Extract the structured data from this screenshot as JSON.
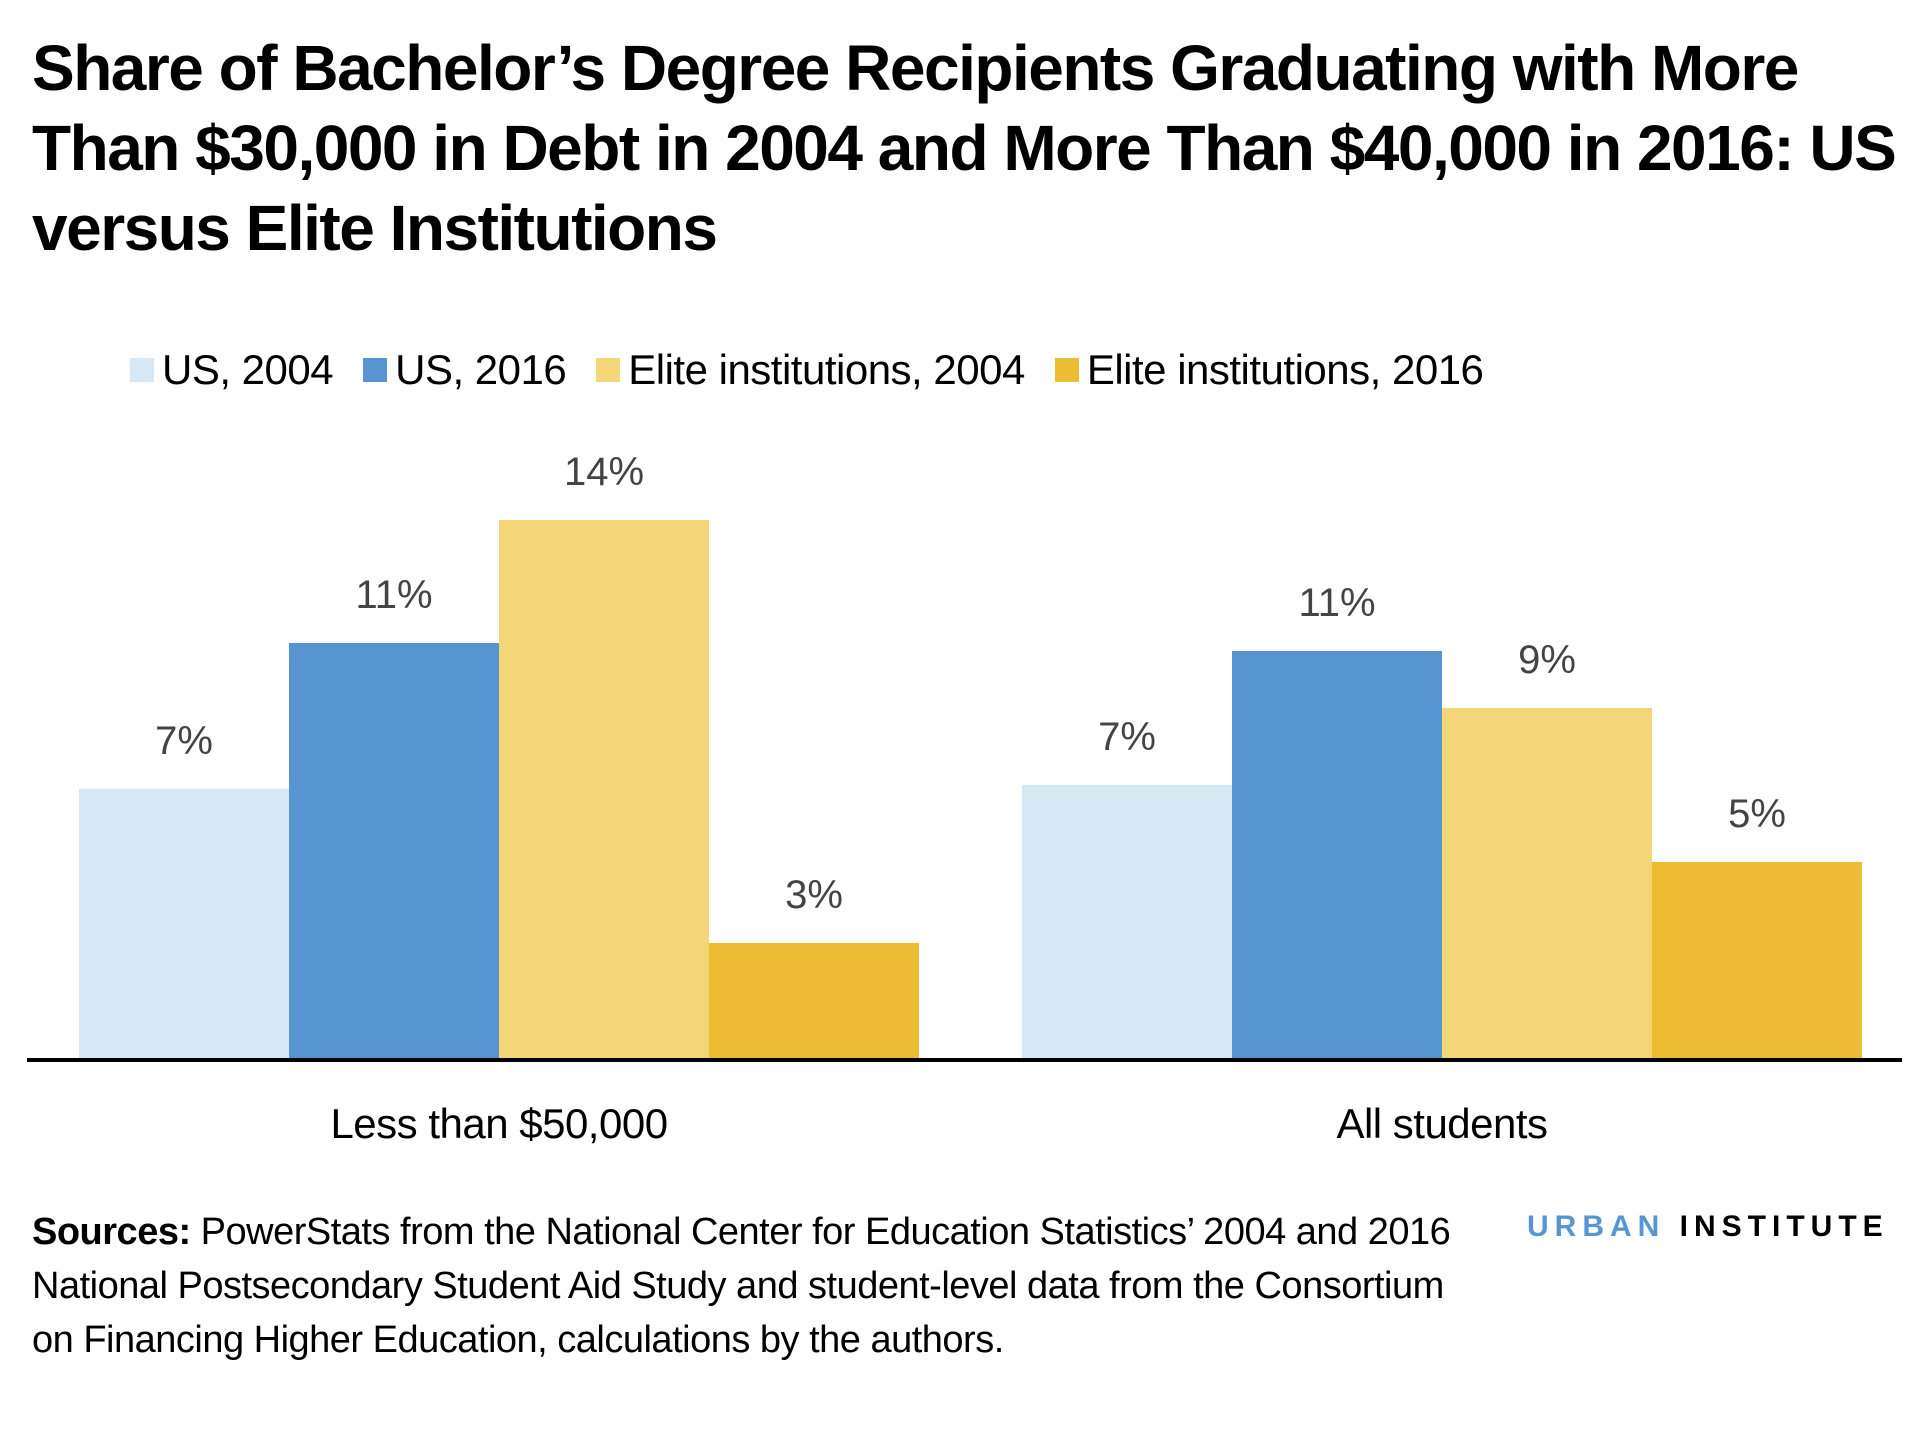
{
  "title": "Share of Bachelor’s Degree Recipients Graduating with More Than $30,000 in Debt in 2004 and More Than $40,000 in 2016: US versus Elite Institutions",
  "legend": [
    {
      "label": "US, 2004",
      "color": "#d5e8f3"
    },
    {
      "label": "US, 2016",
      "color": "#5894d1"
    },
    {
      "label": "Elite institutions, 2004",
      "color": "#f3d678"
    },
    {
      "label": "Elite institutions, 2016",
      "color": "#ecbd33"
    }
  ],
  "categories": [
    {
      "label": "Less than $50,000",
      "bars": [
        {
          "value": 7.0,
          "label": "7%"
        },
        {
          "value": 10.8,
          "label": "11%"
        },
        {
          "value": 14.0,
          "label": "14%"
        },
        {
          "value": 3.0,
          "label": "3%"
        }
      ]
    },
    {
      "label": "All students",
      "bars": [
        {
          "value": 7.1,
          "label": "7%"
        },
        {
          "value": 10.6,
          "label": "11%"
        },
        {
          "value": 9.1,
          "label": "9%"
        },
        {
          "value": 5.1,
          "label": "5%"
        }
      ]
    }
  ],
  "sources": {
    "prefix": "Sources:",
    "text": " PowerStats from the National Center for Education Statistics’ 2004 and 2016 National Postsecondary Student Aid Study and student-level data from the Consortium on Financing Higher Education, calculations by the authors."
  },
  "logo": {
    "part1": "URBAN",
    "part2": "INSTITUTE"
  },
  "chart_data": {
    "type": "bar",
    "title": "Share of Bachelor’s Degree Recipients Graduating with More Than $30,000 in Debt in 2004 and More Than $40,000 in 2016: US versus Elite Institutions",
    "categories": [
      "Less than $50,000",
      "All students"
    ],
    "series": [
      {
        "name": "US, 2004",
        "values": [
          7,
          7
        ]
      },
      {
        "name": "US, 2016",
        "values": [
          11,
          11
        ]
      },
      {
        "name": "Elite institutions, 2004",
        "values": [
          14,
          9
        ]
      },
      {
        "name": "Elite institutions, 2016",
        "values": [
          3,
          5
        ]
      }
    ],
    "data_labels": [
      [
        "7%",
        "11%",
        "14%",
        "3%"
      ],
      [
        "7%",
        "11%",
        "9%",
        "5%"
      ]
    ],
    "xlabel": "",
    "ylabel": "",
    "y_unit": "%",
    "grid": false,
    "y_axis_visible": false,
    "legend_position": "top",
    "source_note": "Sources: PowerStats from the National Center for Education Statistics’ 2004 and 2016 National Postsecondary Student Aid Study and student-level data from the Consortium on Financing Higher Education, calculations by the authors."
  }
}
